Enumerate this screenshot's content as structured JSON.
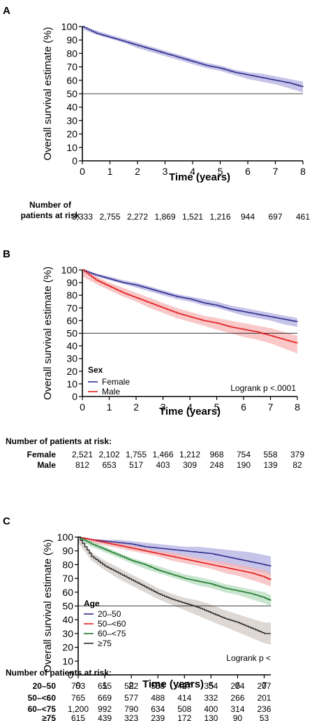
{
  "chart_data": [
    {
      "panel": "A",
      "type": "line",
      "xlabel": "Time (years)",
      "ylabel": "Overall survival estimate (%)",
      "xlim": [
        0,
        8
      ],
      "ylim": [
        0,
        100
      ],
      "x_ticks": [
        0,
        1,
        2,
        3,
        4,
        5,
        6,
        7,
        8
      ],
      "y_ticks": [
        0,
        10,
        20,
        30,
        40,
        50,
        60,
        70,
        80,
        90,
        100
      ],
      "reference_line": 50,
      "legend_title": "",
      "logrank": "",
      "series": [
        {
          "name": "",
          "color": "#2e2b8c",
          "band_color": "#b3b0e0",
          "x": [
            0,
            0.5,
            1,
            1.5,
            2,
            2.5,
            3,
            3.5,
            4,
            4.5,
            5,
            5.5,
            6,
            6.5,
            7,
            7.5,
            8
          ],
          "y": [
            100,
            95,
            92,
            89,
            86,
            83,
            80,
            77,
            74,
            71,
            69,
            66,
            64,
            62,
            60,
            58,
            55
          ],
          "lower": [
            98,
            94,
            91,
            88,
            84,
            81,
            78,
            75,
            72,
            69,
            67,
            64,
            61,
            59,
            57,
            54,
            51
          ],
          "upper": [
            100,
            97,
            94,
            91,
            88,
            85,
            82,
            79,
            76,
            73,
            71,
            68,
            66,
            65,
            63,
            61,
            59
          ]
        }
      ],
      "at_risk": {
        "header": "Number of\npatients at risk",
        "rows": [
          {
            "label": "",
            "values": [
              "3,333",
              "2,755",
              "2,272",
              "1,869",
              "1,521",
              "1,216",
              "944",
              "697",
              "461"
            ]
          }
        ]
      }
    },
    {
      "panel": "B",
      "type": "line",
      "xlabel": "Time (years)",
      "ylabel": "Overall survival estimate (%)",
      "xlim": [
        0,
        8
      ],
      "ylim": [
        0,
        100
      ],
      "x_ticks": [
        0,
        1,
        2,
        3,
        4,
        5,
        6,
        7,
        8
      ],
      "y_ticks": [
        0,
        10,
        20,
        30,
        40,
        50,
        60,
        70,
        80,
        90,
        100
      ],
      "reference_line": 50,
      "legend_title": "Sex",
      "logrank": "Logrank p <.0001",
      "series": [
        {
          "name": "Female",
          "color": "#2e2b8c",
          "band_color": "#b3b0e0",
          "x": [
            0,
            0.5,
            1,
            1.5,
            2,
            2.5,
            3,
            3.5,
            4,
            4.5,
            5,
            5.5,
            6,
            6.5,
            7,
            7.5,
            8
          ],
          "y": [
            100,
            96,
            93,
            90,
            88,
            85,
            82,
            79,
            77,
            74,
            72,
            69,
            67,
            65,
            63,
            61,
            59
          ],
          "lower": [
            98,
            95,
            92,
            89,
            86,
            83,
            80,
            77,
            75,
            72,
            70,
            67,
            64,
            62,
            60,
            57,
            55
          ],
          "upper": [
            100,
            97,
            95,
            92,
            90,
            87,
            84,
            81,
            79,
            77,
            75,
            72,
            70,
            68,
            66,
            64,
            62
          ]
        },
        {
          "name": "Male",
          "color": "#e31a1c",
          "band_color": "#f7b6b6",
          "x": [
            0,
            0.5,
            1,
            1.5,
            2,
            2.5,
            3,
            3.5,
            4,
            4.5,
            5,
            5.5,
            6,
            6.5,
            7,
            7.5,
            8
          ],
          "y": [
            100,
            92,
            87,
            82,
            78,
            74,
            70,
            66,
            63,
            60,
            58,
            55,
            53,
            51,
            48,
            45,
            42
          ],
          "lower": [
            95,
            89,
            84,
            79,
            75,
            70,
            66,
            62,
            59,
            56,
            53,
            50,
            47,
            45,
            42,
            38,
            34
          ],
          "upper": [
            100,
            95,
            90,
            86,
            82,
            78,
            74,
            70,
            67,
            64,
            62,
            60,
            58,
            56,
            54,
            51,
            48
          ]
        }
      ],
      "at_risk": {
        "header": "Number of patients at risk:",
        "rows": [
          {
            "label": "Female",
            "values": [
              "2,521",
              "2,102",
              "1,755",
              "1,466",
              "1,212",
              "968",
              "754",
              "558",
              "379"
            ]
          },
          {
            "label": "Male",
            "values": [
              "812",
              "653",
              "517",
              "403",
              "309",
              "248",
              "190",
              "139",
              "82"
            ]
          }
        ]
      }
    },
    {
      "panel": "C",
      "type": "line",
      "xlabel": "Time (years)",
      "ylabel": "Overall survival estimate (%)",
      "xlim": [
        0,
        7.25
      ],
      "ylim": [
        0,
        100
      ],
      "x_ticks": [
        0,
        1,
        2,
        3,
        4,
        5,
        6,
        7
      ],
      "y_ticks": [
        0,
        10,
        20,
        30,
        40,
        50,
        60,
        70,
        80,
        90,
        100
      ],
      "reference_line": 50,
      "legend_title": "Age",
      "logrank": "Logrank p <",
      "series": [
        {
          "name": "20–50",
          "color": "#2e2b8c",
          "band_color": "#b3b0e0",
          "x": [
            0,
            0.5,
            1,
            1.5,
            2,
            2.5,
            3,
            3.5,
            4,
            4.5,
            5,
            5.5,
            6,
            6.5,
            7,
            7.25
          ],
          "y": [
            100,
            98,
            97,
            96,
            95,
            93,
            92,
            91,
            90,
            89,
            88,
            86,
            84,
            82,
            80,
            79
          ],
          "lower": [
            98,
            97,
            95,
            94,
            92,
            90,
            89,
            87,
            86,
            84,
            82,
            80,
            78,
            76,
            74,
            72
          ],
          "upper": [
            100,
            99,
            98,
            98,
            97,
            96,
            95,
            94,
            93,
            93,
            92,
            91,
            90,
            89,
            87,
            86
          ]
        },
        {
          "name": "50–<60",
          "color": "#e31a1c",
          "band_color": "#f7b6b6",
          "x": [
            0,
            0.5,
            1,
            1.5,
            2,
            2.5,
            3,
            3.5,
            4,
            4.5,
            5,
            5.5,
            6,
            6.5,
            7,
            7.25
          ],
          "y": [
            100,
            98,
            96,
            94,
            92,
            90,
            88,
            86,
            84,
            82,
            80,
            78,
            76,
            74,
            71,
            69
          ],
          "lower": [
            98,
            96,
            94,
            92,
            90,
            88,
            86,
            83,
            81,
            79,
            77,
            74,
            72,
            69,
            66,
            64
          ],
          "upper": [
            100,
            99,
            98,
            96,
            94,
            92,
            90,
            89,
            87,
            85,
            83,
            82,
            80,
            78,
            76,
            74
          ]
        },
        {
          "name": "60–<75",
          "color": "#1f7a2e",
          "band_color": "#b7dcbf",
          "x": [
            0,
            0.5,
            1,
            1.5,
            2,
            2.5,
            3,
            3.5,
            4,
            4.5,
            5,
            5.5,
            6,
            6.5,
            7,
            7.25
          ],
          "y": [
            100,
            95,
            91,
            87,
            83,
            80,
            76,
            73,
            70,
            68,
            66,
            63,
            61,
            59,
            56,
            54
          ],
          "lower": [
            98,
            93,
            89,
            85,
            81,
            77,
            74,
            71,
            68,
            65,
            63,
            60,
            58,
            55,
            52,
            50
          ],
          "upper": [
            100,
            97,
            93,
            89,
            85,
            82,
            79,
            76,
            73,
            71,
            69,
            66,
            64,
            62,
            60,
            58
          ]
        },
        {
          "name": "≥75",
          "color": "#2b2b2b",
          "band_color": "#d2cbc6",
          "x": [
            0,
            0.5,
            1,
            1.5,
            2,
            2.5,
            3,
            3.5,
            4,
            4.5,
            5,
            5.5,
            6,
            6.5,
            7,
            7.25
          ],
          "y": [
            100,
            86,
            79,
            74,
            69,
            64,
            59,
            55,
            52,
            49,
            45,
            41,
            38,
            34,
            30,
            30
          ],
          "lower": [
            96,
            83,
            76,
            70,
            65,
            60,
            55,
            51,
            47,
            43,
            39,
            35,
            31,
            27,
            23,
            22
          ],
          "upper": [
            100,
            89,
            83,
            78,
            73,
            68,
            63,
            59,
            56,
            54,
            51,
            47,
            44,
            41,
            38,
            38
          ]
        }
      ],
      "at_risk": {
        "header": "Number of patients at risk:",
        "rows": [
          {
            "label": "20–50",
            "values": [
              "753",
              "655",
              "582",
              "508",
              "427",
              "354",
              "274",
              "207"
            ]
          },
          {
            "label": "50–<60",
            "values": [
              "765",
              "669",
              "577",
              "488",
              "414",
              "332",
              "266",
              "201"
            ]
          },
          {
            "label": "60–<75",
            "values": [
              "1,200",
              "992",
              "790",
              "634",
              "508",
              "400",
              "314",
              "236"
            ]
          },
          {
            "label": "≥75",
            "values": [
              "615",
              "439",
              "323",
              "239",
              "172",
              "130",
              "90",
              "53"
            ]
          }
        ]
      }
    }
  ]
}
